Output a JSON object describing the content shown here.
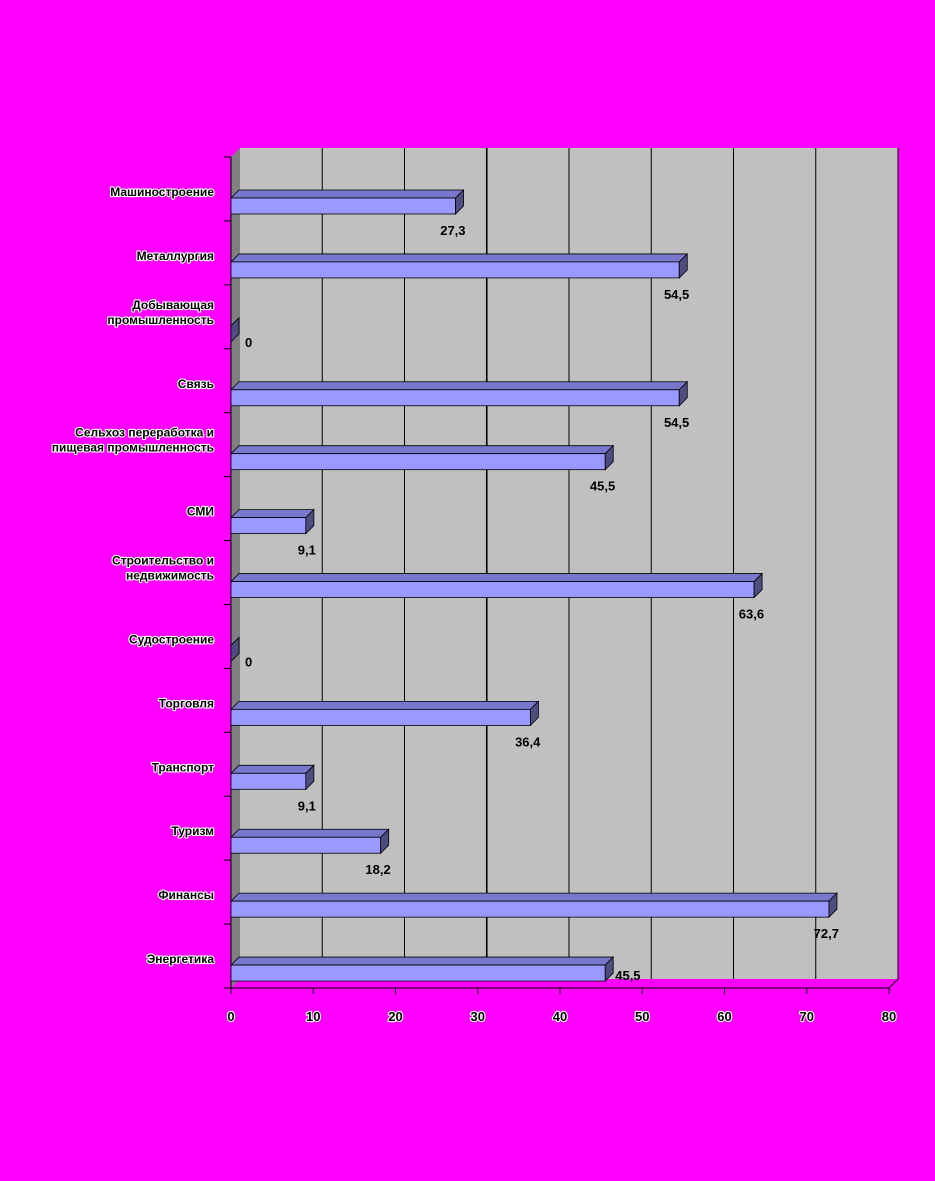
{
  "chart_data": {
    "type": "bar",
    "orientation": "horizontal",
    "style": "3d",
    "categories": [
      [
        "Машиностроение"
      ],
      [
        "Металлургия"
      ],
      [
        "Добывающая",
        "промышленность"
      ],
      [
        "Связь"
      ],
      [
        "Сельхоз переработка и",
        "пищевая промышленность"
      ],
      [
        "СМИ"
      ],
      [
        "Строительство и",
        "недвижимость"
      ],
      [
        "Судостроение"
      ],
      [
        "Торговля"
      ],
      [
        "Транспорт"
      ],
      [
        "Туризм"
      ],
      [
        "Финансы"
      ],
      [
        "Энергетика"
      ]
    ],
    "values": [
      27.3,
      54.5,
      0,
      54.5,
      45.5,
      9.1,
      63.6,
      0,
      36.4,
      9.1,
      18.2,
      72.7,
      45.5
    ],
    "data_labels": [
      "27,3",
      "54,5",
      "0",
      "54,5",
      "45,5",
      "9,1",
      "63,6",
      "0",
      "36,4",
      "9,1",
      "18,2",
      "72,7",
      "45,5"
    ],
    "x_ticks": [
      "0",
      "10",
      "20",
      "30",
      "40",
      "50",
      "60",
      "70",
      "80"
    ],
    "xlim": [
      0,
      80
    ],
    "grid": true,
    "legend": "none",
    "colors": {
      "background": "#ff00ff",
      "plot_area": "#c0c0c0",
      "plot_side": "#808080",
      "bar_front": "#9999ff",
      "bar_top": "#7777cc",
      "bar_side": "#4d4d80",
      "gridline": "#000000"
    }
  }
}
